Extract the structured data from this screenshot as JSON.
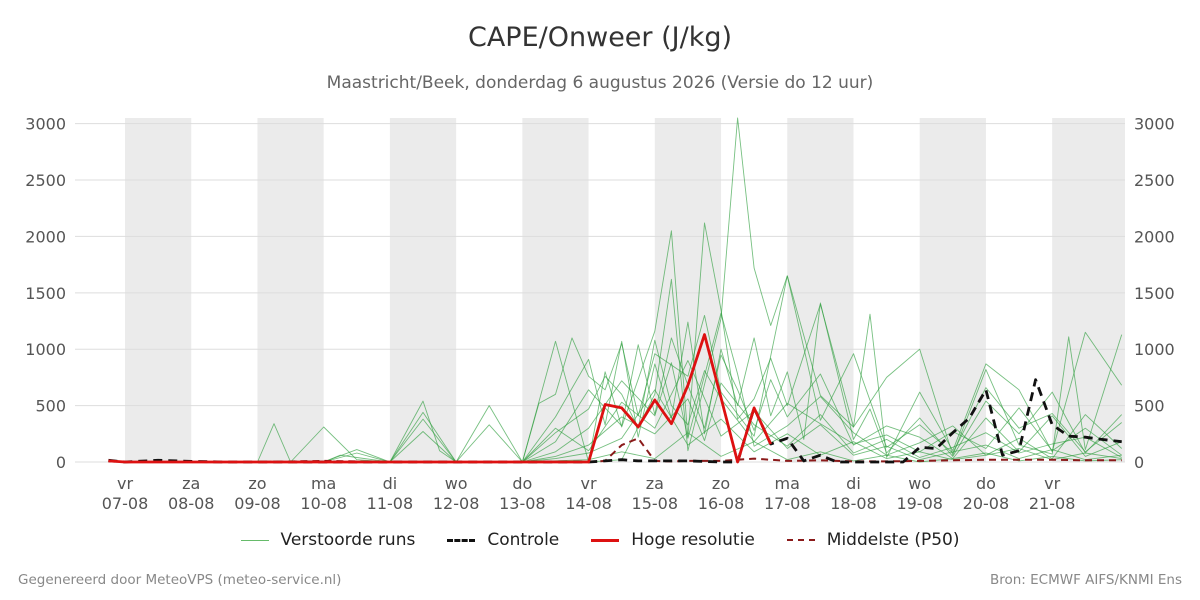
{
  "header": {
    "title": "CAPE/Onweer (J/kg)",
    "subtitle": "Maastricht/Beek, donderdag  6 augustus 2026 (Versie do 12 uur)"
  },
  "footer": {
    "generated_by": "Gegenereerd door MeteoVPS (meteo-service.nl)",
    "source": "Bron: ECMWF AIFS/KNMI Ens"
  },
  "legend": {
    "items": [
      {
        "label": "Verstoorde runs",
        "color": "#66bb6a",
        "style": "thin"
      },
      {
        "label": "Controle",
        "color": "#111111",
        "style": "dashed"
      },
      {
        "label": "Hoge resolutie",
        "color": "#dd1111",
        "style": "solid"
      },
      {
        "label": "Middelste (P50)",
        "color": "#8b1a1a",
        "style": "dashed"
      }
    ]
  },
  "colors": {
    "perturbed": "#2e9e3e",
    "control": "#111111",
    "high_res": "#dd1111",
    "median": "#8b1a1a",
    "weekend_band": "#ebebeb",
    "grid": "#dddddd"
  },
  "chart_data": {
    "type": "line",
    "xlim": [
      0,
      15.1
    ],
    "ylim": [
      0,
      3050
    ],
    "yticks": [
      0,
      500,
      1000,
      1500,
      2000,
      2500,
      3000
    ],
    "grid": "horizontal",
    "weekend_bands": [
      [
        0,
        1
      ],
      [
        2,
        3
      ],
      [
        4,
        5
      ],
      [
        6,
        7
      ],
      [
        8,
        9
      ],
      [
        10,
        11
      ],
      [
        12,
        13
      ],
      [
        14,
        15.1
      ]
    ],
    "x_ticks": [
      {
        "x": 0,
        "day": "vr",
        "date": "07-08"
      },
      {
        "x": 1,
        "day": "za",
        "date": "08-08"
      },
      {
        "x": 2,
        "day": "zo",
        "date": "09-08"
      },
      {
        "x": 3,
        "day": "ma",
        "date": "10-08"
      },
      {
        "x": 4,
        "day": "di",
        "date": "11-08"
      },
      {
        "x": 5,
        "day": "wo",
        "date": "12-08"
      },
      {
        "x": 6,
        "day": "do",
        "date": "13-08"
      },
      {
        "x": 7,
        "day": "vr",
        "date": "14-08"
      },
      {
        "x": 8,
        "day": "za",
        "date": "15-08"
      },
      {
        "x": 9,
        "day": "zo",
        "date": "16-08"
      },
      {
        "x": 10,
        "day": "ma",
        "date": "17-08"
      },
      {
        "x": 11,
        "day": "di",
        "date": "18-08"
      },
      {
        "x": 12,
        "day": "wo",
        "date": "19-08"
      },
      {
        "x": 13,
        "day": "do",
        "date": "20-08"
      },
      {
        "x": 14,
        "day": "vr",
        "date": "21-08"
      }
    ],
    "series": [
      {
        "name": "Hoge resolutie",
        "style": "solid",
        "color": "#dd1111",
        "x": [
          -0.25,
          0,
          0.5,
          1,
          1.5,
          2,
          2.5,
          3,
          3.5,
          4,
          4.5,
          5,
          5.5,
          6,
          6.5,
          7,
          7.25,
          7.5,
          7.75,
          8,
          8.25,
          8.5,
          8.75,
          9,
          9.25,
          9.5,
          9.75
        ],
        "y": [
          10,
          0,
          0,
          0,
          0,
          0,
          0,
          0,
          0,
          0,
          0,
          0,
          0,
          0,
          0,
          0,
          510,
          480,
          310,
          550,
          340,
          680,
          1130,
          570,
          0,
          480,
          160
        ]
      },
      {
        "name": "Controle",
        "style": "dashed",
        "color": "#111111",
        "x": [
          -0.25,
          0,
          0.5,
          1,
          1.5,
          2,
          2.5,
          3,
          3.5,
          4,
          4.5,
          5,
          5.5,
          6,
          6.5,
          7,
          7.25,
          7.5,
          7.75,
          8,
          8.5,
          9,
          9.25,
          9.5,
          9.75,
          10,
          10.25,
          10.5,
          10.75,
          11,
          11.25,
          11.5,
          11.75,
          12,
          12.25,
          12.5,
          12.75,
          13,
          13.25,
          13.5,
          13.75,
          14,
          14.25,
          14.5,
          14.75,
          15.05
        ],
        "y": [
          15,
          0,
          15,
          5,
          0,
          0,
          0,
          0,
          0,
          0,
          0,
          0,
          0,
          0,
          0,
          0,
          10,
          20,
          10,
          10,
          10,
          0,
          0,
          480,
          160,
          210,
          10,
          60,
          0,
          0,
          0,
          0,
          0,
          130,
          120,
          260,
          390,
          640,
          60,
          100,
          730,
          330,
          230,
          220,
          200,
          180
        ]
      },
      {
        "name": "Middelste (P50)",
        "style": "dashed",
        "color": "#8b1a1a",
        "x": [
          -0.25,
          0,
          1,
          2,
          3,
          4,
          5,
          6,
          7,
          7.25,
          7.5,
          7.75,
          8,
          8.25,
          8.5,
          9,
          9.5,
          10,
          10.5,
          11,
          11.5,
          12,
          12.5,
          13,
          13.5,
          14,
          14.5,
          15.05
        ],
        "y": [
          5,
          0,
          0,
          0,
          10,
          0,
          0,
          0,
          0,
          10,
          150,
          210,
          10,
          5,
          10,
          10,
          30,
          10,
          15,
          5,
          5,
          10,
          15,
          20,
          20,
          20,
          15,
          15
        ]
      },
      {
        "name": "Verstoorde run 1",
        "style": "perturbed",
        "color": "#2e9e3e",
        "x": [
          0,
          1,
          2,
          2.25,
          2.5,
          3,
          3.5,
          4,
          4.5,
          5,
          6,
          7,
          7.5,
          8,
          8.25,
          8.5,
          9,
          9.25,
          9.5,
          9.75,
          10,
          10.5,
          11,
          11.5,
          12,
          12.5,
          13,
          13.5,
          14,
          14.25,
          14.5,
          15.05
        ],
        "y": [
          0,
          0,
          0,
          340,
          0,
          310,
          20,
          0,
          440,
          0,
          0,
          0,
          20,
          600,
          1620,
          100,
          1270,
          3050,
          1720,
          1210,
          1650,
          590,
          310,
          750,
          1000,
          60,
          820,
          150,
          70,
          1110,
          110,
          1130
        ]
      },
      {
        "name": "Verstoorde run 2",
        "style": "perturbed",
        "color": "#2e9e3e",
        "x": [
          0,
          2,
          3,
          3.5,
          4,
          4.5,
          4.75,
          5,
          5.5,
          6,
          6.5,
          7,
          7.25,
          7.5,
          8,
          8.25,
          8.5,
          8.75,
          9,
          9.25,
          9.5,
          9.75,
          10,
          10.5,
          11,
          11.25,
          11.5,
          12,
          12.5,
          13,
          13.5,
          14,
          14.5,
          15.05
        ],
        "y": [
          0,
          0,
          0,
          80,
          0,
          540,
          100,
          0,
          500,
          0,
          1070,
          0,
          800,
          310,
          1160,
          2050,
          220,
          2120,
          1350,
          380,
          560,
          920,
          500,
          1400,
          310,
          1310,
          40,
          620,
          100,
          870,
          640,
          90,
          1150,
          680
        ]
      },
      {
        "name": "Verstoorde run 3",
        "style": "perturbed",
        "color": "#2e9e3e",
        "x": [
          0,
          3,
          3.5,
          4,
          4.5,
          5,
          5.5,
          6,
          6.25,
          6.5,
          6.75,
          7,
          7.25,
          7.5,
          7.75,
          8,
          8.5,
          8.75,
          9,
          9.5,
          10,
          10.5,
          11,
          11.5,
          12,
          12.5,
          13,
          13.5,
          14,
          14.5,
          15.05
        ],
        "y": [
          0,
          0,
          110,
          0,
          380,
          0,
          330,
          0,
          520,
          600,
          1100,
          760,
          640,
          1050,
          410,
          960,
          760,
          1300,
          620,
          230,
          1650,
          370,
          960,
          130,
          330,
          80,
          660,
          300,
          430,
          90,
          350
        ]
      },
      {
        "name": "Verstoorde run 4",
        "style": "perturbed",
        "color": "#2e9e3e",
        "x": [
          0,
          6,
          6.5,
          7,
          7.25,
          7.5,
          7.75,
          8,
          8.25,
          8.5,
          8.75,
          9,
          9.25,
          9.5,
          9.75,
          10,
          10.25,
          10.5,
          11,
          11.25,
          11.5,
          12,
          12.5,
          13,
          13.5,
          14,
          14.5,
          15.05
        ],
        "y": [
          0,
          0,
          400,
          910,
          330,
          1070,
          220,
          870,
          390,
          1240,
          250,
          1000,
          500,
          1100,
          410,
          800,
          200,
          1410,
          200,
          470,
          80,
          390,
          50,
          540,
          250,
          620,
          80,
          420
        ]
      },
      {
        "name": "Verstoorde run 5",
        "style": "perturbed",
        "color": "#2e9e3e",
        "x": [
          0,
          6,
          6.5,
          7,
          7.5,
          7.75,
          8,
          8.25,
          8.5,
          8.75,
          9,
          9.25,
          9.5,
          9.75,
          10,
          10.5,
          11,
          11.5,
          12,
          12.5,
          13,
          13.5,
          14,
          14.5,
          15.05
        ],
        "y": [
          0,
          0,
          180,
          640,
          320,
          1040,
          420,
          1100,
          680,
          300,
          950,
          640,
          280,
          730,
          400,
          780,
          150,
          320,
          220,
          30,
          390,
          90,
          410,
          50,
          180
        ]
      },
      {
        "name": "Verstoorde run 6",
        "style": "perturbed",
        "color": "#2e9e3e",
        "x": [
          0,
          6,
          6.5,
          7,
          7.25,
          7.5,
          7.75,
          8,
          8.25,
          8.5,
          8.75,
          9,
          9.5,
          10,
          10.5,
          11,
          11.5,
          12,
          12.5,
          13,
          13.5,
          14,
          14.5,
          15.05
        ],
        "y": [
          0,
          0,
          260,
          470,
          760,
          600,
          300,
          1080,
          500,
          330,
          810,
          560,
          180,
          520,
          340,
          160,
          240,
          90,
          270,
          120,
          480,
          100,
          300,
          60
        ]
      },
      {
        "name": "Verstoorde run 7",
        "style": "perturbed",
        "color": "#2e9e3e",
        "x": [
          0,
          6,
          6.5,
          7,
          7.5,
          8,
          8.25,
          8.5,
          9,
          9.25,
          9.5,
          10,
          10.5,
          11,
          11.5,
          12,
          12.5,
          13,
          13.5,
          14,
          14.5,
          15.05
        ],
        "y": [
          0,
          0,
          90,
          300,
          720,
          410,
          880,
          210,
          1320,
          780,
          140,
          320,
          580,
          260,
          60,
          170,
          320,
          60,
          210,
          30,
          420,
          120
        ]
      },
      {
        "name": "Verstoorde run 8",
        "style": "perturbed",
        "color": "#2e9e3e",
        "x": [
          0,
          6,
          6.5,
          7,
          7.5,
          8,
          8.5,
          8.75,
          9,
          9.5,
          10,
          10.5,
          11,
          11.5,
          12,
          12.5,
          13,
          13.5,
          14,
          14.5,
          15.05
        ],
        "y": [
          0,
          0,
          50,
          150,
          400,
          250,
          560,
          190,
          700,
          330,
          140,
          420,
          80,
          200,
          40,
          130,
          260,
          80,
          160,
          220,
          40
        ]
      },
      {
        "name": "Verstoorde run 9",
        "style": "perturbed",
        "color": "#2e9e3e",
        "x": [
          0,
          3,
          3.25,
          3.5,
          4,
          4.5,
          5,
          6,
          6.5,
          7,
          7.5,
          8,
          8.5,
          9,
          9.5,
          10,
          10.5,
          11,
          11.5,
          12,
          12.5,
          13,
          13.5,
          14,
          14.5,
          15.05
        ],
        "y": [
          0,
          0,
          60,
          40,
          0,
          270,
          0,
          0,
          300,
          100,
          530,
          300,
          900,
          230,
          450,
          120,
          330,
          60,
          140,
          20,
          90,
          150,
          30,
          110,
          20,
          60
        ]
      },
      {
        "name": "Verstoorde run 10",
        "style": "perturbed",
        "color": "#2e9e3e",
        "x": [
          0,
          6,
          6.5,
          7,
          7.5,
          8,
          8.5,
          9,
          9.5,
          10,
          10.5,
          11,
          11.5,
          12,
          12.5,
          13,
          13.5,
          14,
          14.5,
          15.05
        ],
        "y": [
          0,
          0,
          30,
          80,
          210,
          640,
          150,
          380,
          90,
          250,
          60,
          180,
          30,
          90,
          20,
          60,
          120,
          20,
          80,
          30
        ]
      },
      {
        "name": "Verstoorde run 11",
        "style": "perturbed",
        "color": "#2e9e3e",
        "x": [
          0,
          6,
          7,
          7.5,
          8,
          8.5,
          9,
          9.5,
          10,
          10.5,
          11,
          11.5,
          12,
          12.5,
          13,
          13.5,
          14,
          14.5,
          15.05
        ],
        "y": [
          0,
          0,
          20,
          90,
          30,
          260,
          50,
          180,
          20,
          90,
          10,
          60,
          0,
          30,
          80,
          10,
          50,
          10,
          20
        ]
      }
    ]
  }
}
